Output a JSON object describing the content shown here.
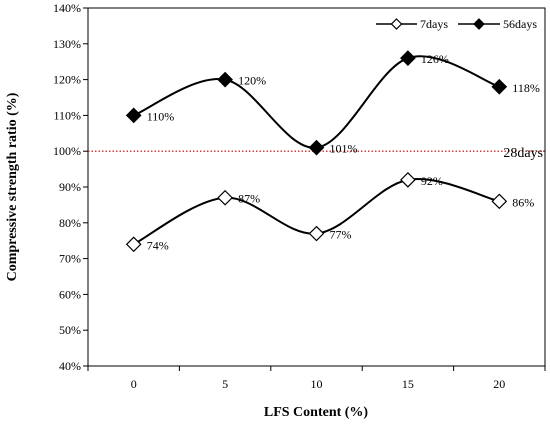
{
  "chart_data": {
    "type": "line",
    "xlabel": "LFS Content (%)",
    "ylabel": "Compressive strength ratio (%)",
    "x": [
      0,
      5,
      10,
      15,
      20
    ],
    "x_tick_labels": [
      "0",
      "5",
      "10",
      "15",
      "20"
    ],
    "ylim": [
      40,
      140
    ],
    "y_tick_labels": [
      "40%",
      "50%",
      "60%",
      "70%",
      "80%",
      "90%",
      "100%",
      "110%",
      "120%",
      "130%",
      "140%"
    ],
    "grid": false,
    "legend_position": "top-right",
    "series": [
      {
        "name": "7days",
        "marker": "open-diamond",
        "color": "#000000",
        "values": [
          74,
          87,
          77,
          92,
          86
        ],
        "labels": [
          "74%",
          "87%",
          "77%",
          "92%",
          "86%"
        ]
      },
      {
        "name": "56days",
        "marker": "filled-diamond",
        "color": "#000000",
        "values": [
          110,
          120,
          101,
          126,
          118
        ],
        "labels": [
          "110%",
          "120%",
          "101%",
          "126%",
          "118%"
        ]
      }
    ],
    "reference_line": {
      "value": 100,
      "label": "28days",
      "color": "#cc0000",
      "style": "dotted"
    }
  }
}
